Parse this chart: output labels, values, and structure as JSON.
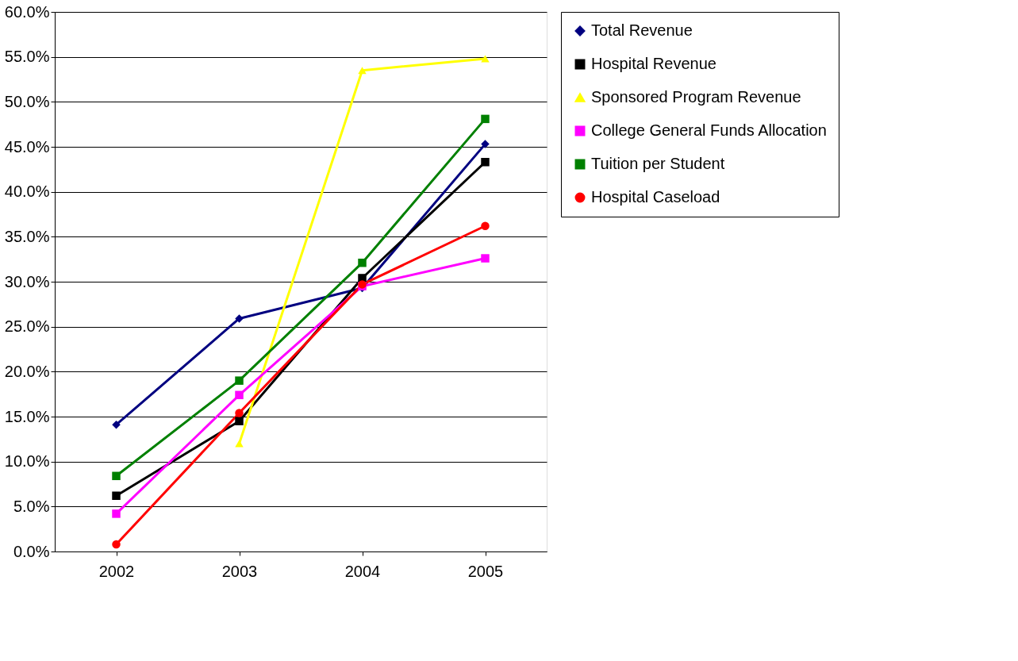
{
  "chart_data": {
    "type": "line",
    "categories": [
      "2002",
      "2003",
      "2004",
      "2005"
    ],
    "series": [
      {
        "name": "Total Revenue",
        "color": "#000080",
        "marker": "diamond",
        "values": [
          14.1,
          25.9,
          29.3,
          45.3
        ]
      },
      {
        "name": "Hospital Revenue",
        "color": "#000000",
        "marker": "square",
        "values": [
          6.2,
          14.5,
          30.4,
          43.3
        ]
      },
      {
        "name": "Sponsored Program Revenue",
        "color": "#ffff00",
        "marker": "triangle",
        "values": [
          null,
          12.0,
          53.5,
          54.8
        ]
      },
      {
        "name": "College General Funds Allocation",
        "color": "#ff00ff",
        "marker": "square",
        "values": [
          4.2,
          17.4,
          29.5,
          32.6
        ]
      },
      {
        "name": "Tuition per Student",
        "color": "#008000",
        "marker": "square",
        "values": [
          8.4,
          19.0,
          32.1,
          48.1
        ]
      },
      {
        "name": "Hospital Caseload",
        "color": "#ff0000",
        "marker": "circle",
        "values": [
          0.8,
          15.4,
          29.7,
          36.2
        ]
      }
    ],
    "ylim": [
      0,
      60
    ],
    "yticks": [
      {
        "value": 0,
        "label": "0.0%"
      },
      {
        "value": 5,
        "label": "5.0%"
      },
      {
        "value": 10,
        "label": "10.0%"
      },
      {
        "value": 15,
        "label": "15.0%"
      },
      {
        "value": 20,
        "label": "20.0%"
      },
      {
        "value": 25,
        "label": "25.0%"
      },
      {
        "value": 30,
        "label": "30.0%"
      },
      {
        "value": 35,
        "label": "35.0%"
      },
      {
        "value": 40,
        "label": "40.0%"
      },
      {
        "value": 45,
        "label": "45.0%"
      },
      {
        "value": 50,
        "label": "50.0%"
      },
      {
        "value": 55,
        "label": "55.0%"
      },
      {
        "value": 60,
        "label": "60.0%"
      }
    ],
    "grid": "y",
    "legend": "right",
    "line_style": "solid"
  }
}
